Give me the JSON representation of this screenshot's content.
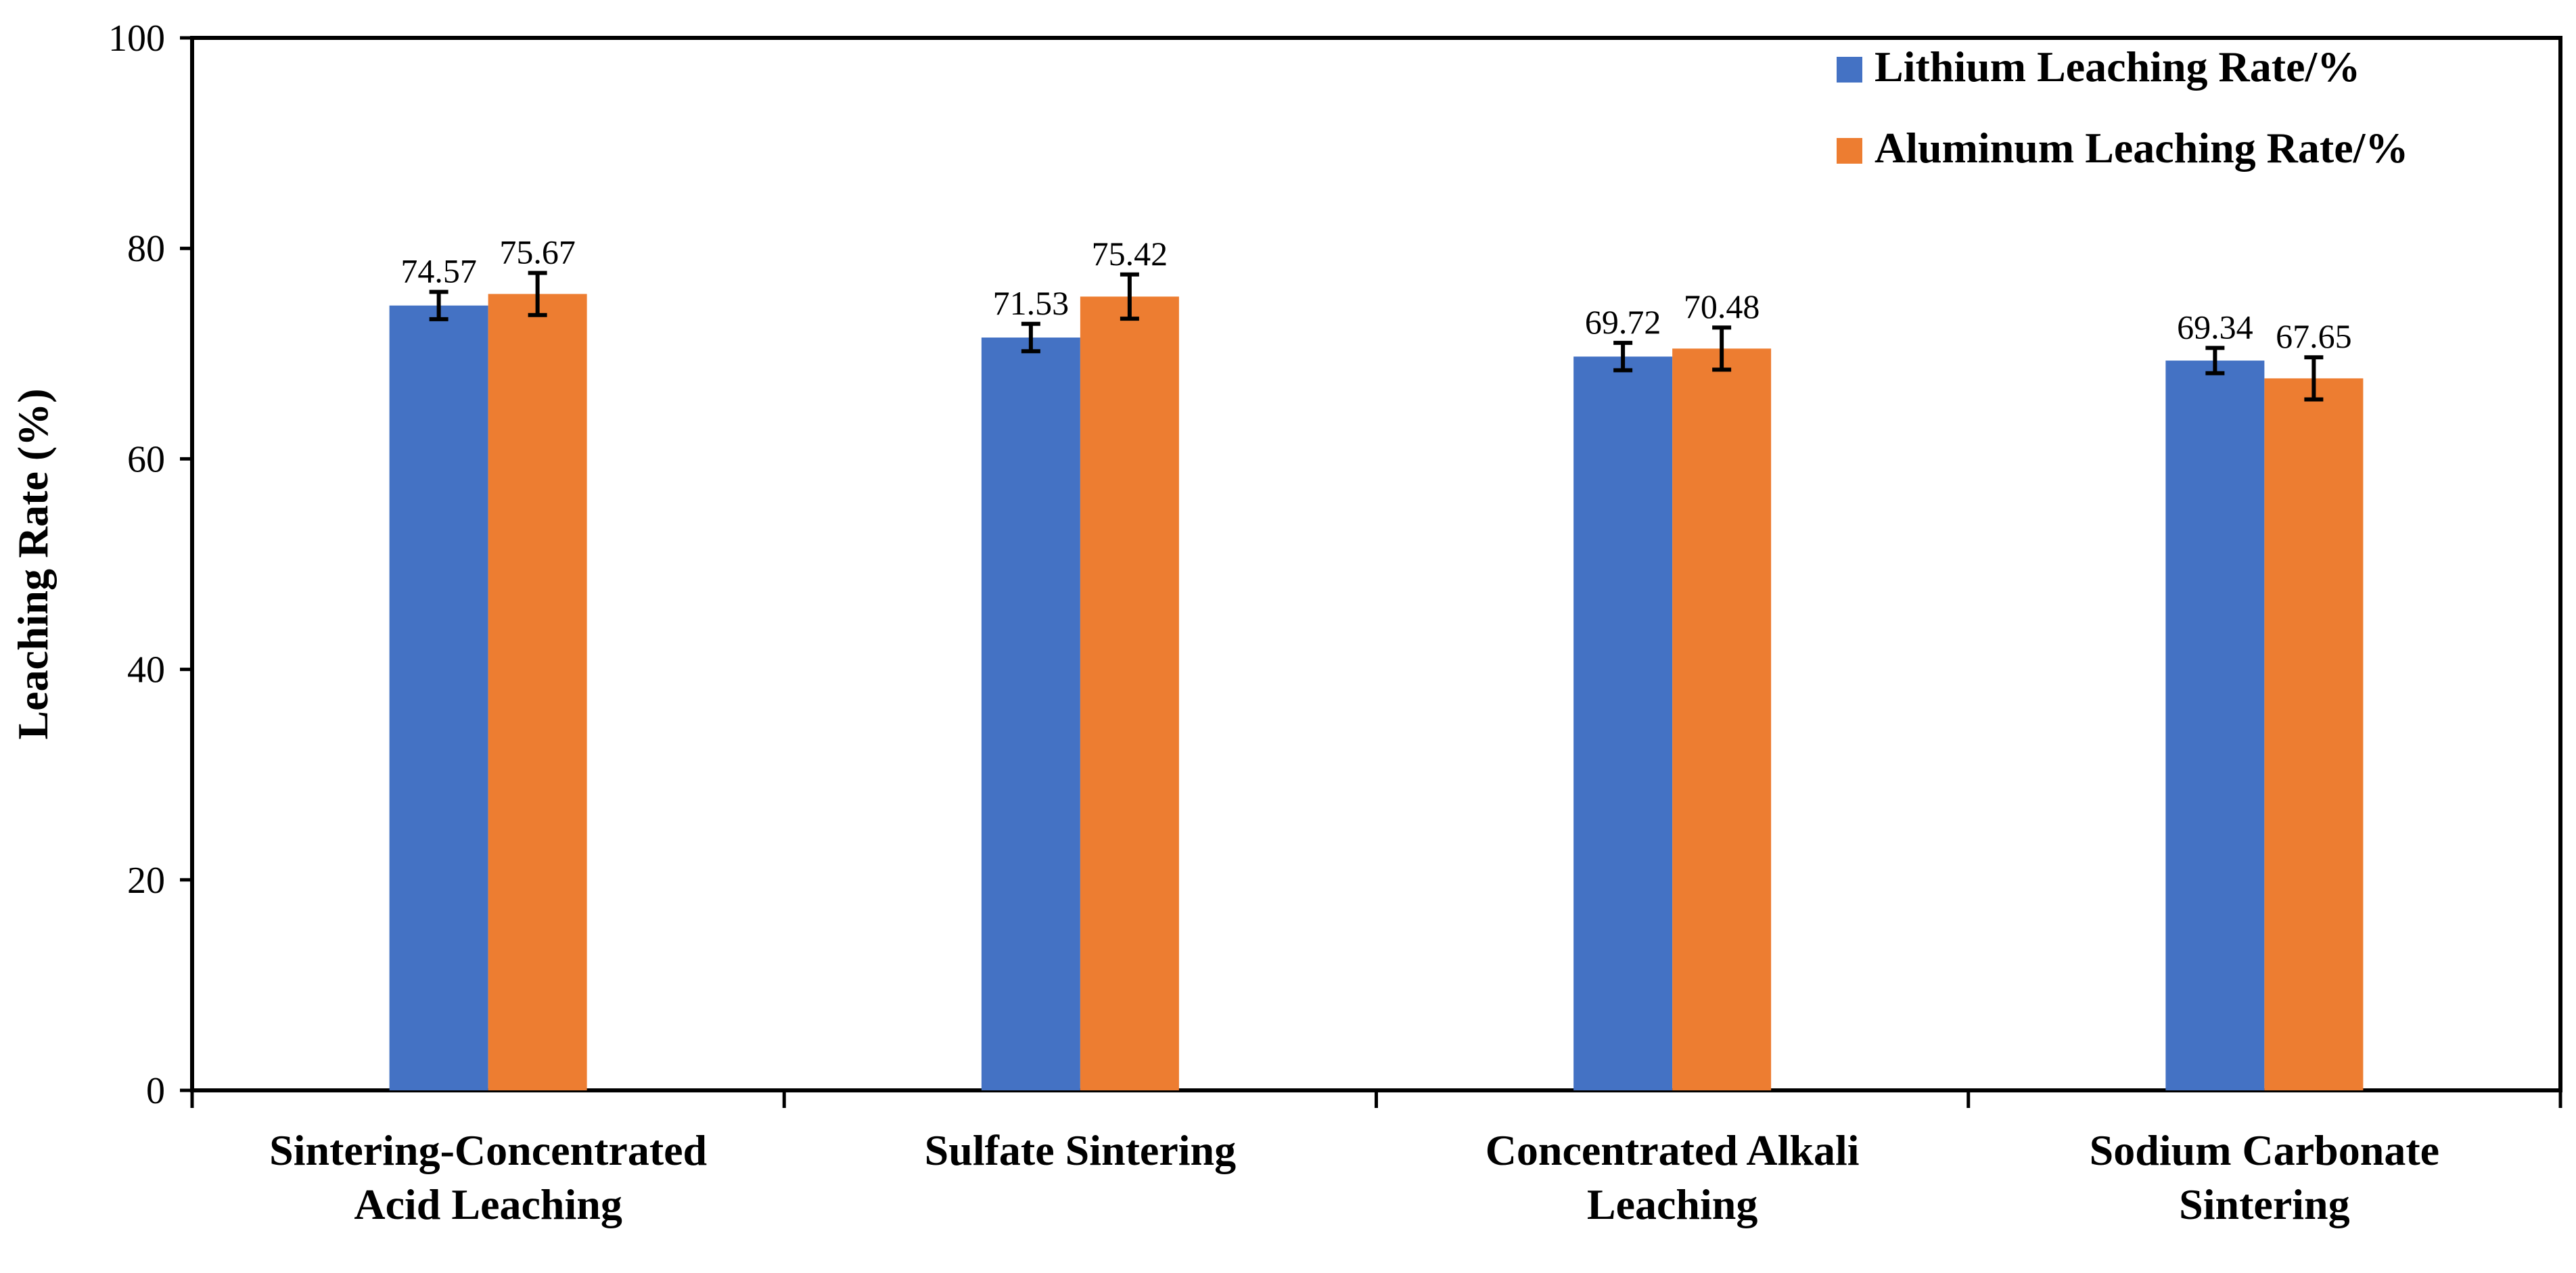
{
  "chart_data": {
    "type": "bar",
    "title": "",
    "xlabel": "",
    "ylabel": "Leaching Rate (%)",
    "ylim": [
      0,
      100
    ],
    "yticks": [
      "0",
      "20",
      "40",
      "60",
      "80",
      "100"
    ],
    "grid": false,
    "legend_position": "top-right",
    "categories": [
      [
        "Sintering-Concentrated",
        "Acid Leaching"
      ],
      [
        "Sulfate Sintering"
      ],
      [
        "Concentrated Alkali",
        "Leaching"
      ],
      [
        "Sodium Carbonate",
        "Sintering"
      ]
    ],
    "series": [
      {
        "name": "Lithium Leaching Rate/%",
        "color": "#4472C4",
        "values": [
          74.57,
          71.53,
          69.72,
          69.34
        ],
        "labels": [
          "74.57",
          "71.53",
          "69.72",
          "69.34"
        ],
        "errors": [
          1.3,
          1.3,
          1.3,
          1.2
        ]
      },
      {
        "name": "Aluminum Leaching Rate/%",
        "color": "#ED7D31",
        "values": [
          75.67,
          75.42,
          70.48,
          67.65
        ],
        "labels": [
          "75.67",
          "75.42",
          "70.48",
          "67.65"
        ],
        "errors": [
          2.0,
          2.1,
          2.0,
          2.0
        ]
      }
    ]
  }
}
